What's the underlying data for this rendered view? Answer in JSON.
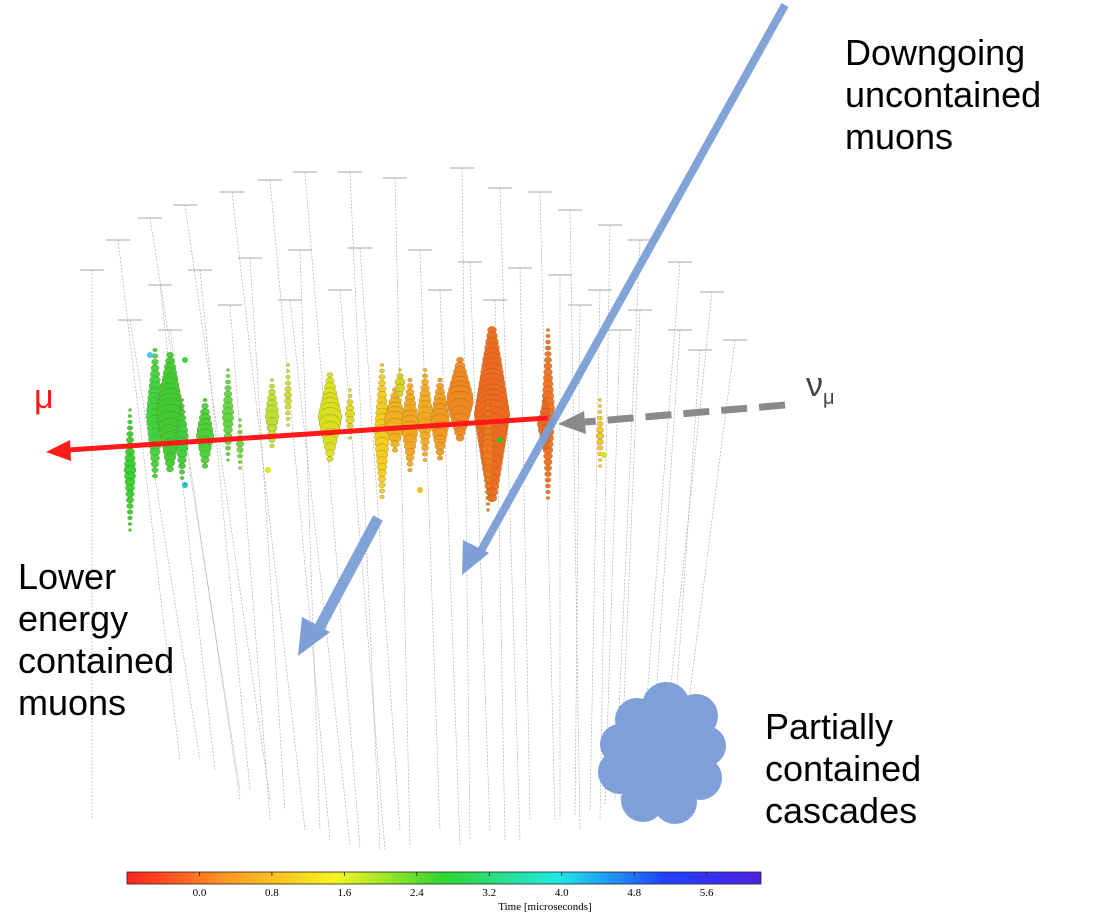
{
  "labels": {
    "downgoing": [
      "Downgoing",
      "uncontained",
      "muons"
    ],
    "lower_energy": [
      "Lower",
      "energy",
      "contained",
      "muons"
    ],
    "partial": [
      "Partially",
      "contained",
      "cascades"
    ],
    "mu": "μ",
    "numu_base": "ν",
    "numu_sub": "μ"
  },
  "colorbar": {
    "axis_title": "Time [microseconds]",
    "ticks": [
      "0.0",
      "0.8",
      "1.6",
      "2.4",
      "3.2",
      "4.0",
      "4.8",
      "5.6"
    ],
    "range_microseconds": [
      -0.8,
      6.2
    ],
    "colors": [
      "#ff2020",
      "#ff9a20",
      "#f5f520",
      "#30d530",
      "#20e8e8",
      "#2040ff",
      "#5020e0"
    ]
  },
  "colors": {
    "muon_track": "#ff1a1a",
    "background_arrows": "#7b9fd6",
    "neutrino_arrow": "#888888",
    "detector_strings": "#9a9a9a"
  }
}
